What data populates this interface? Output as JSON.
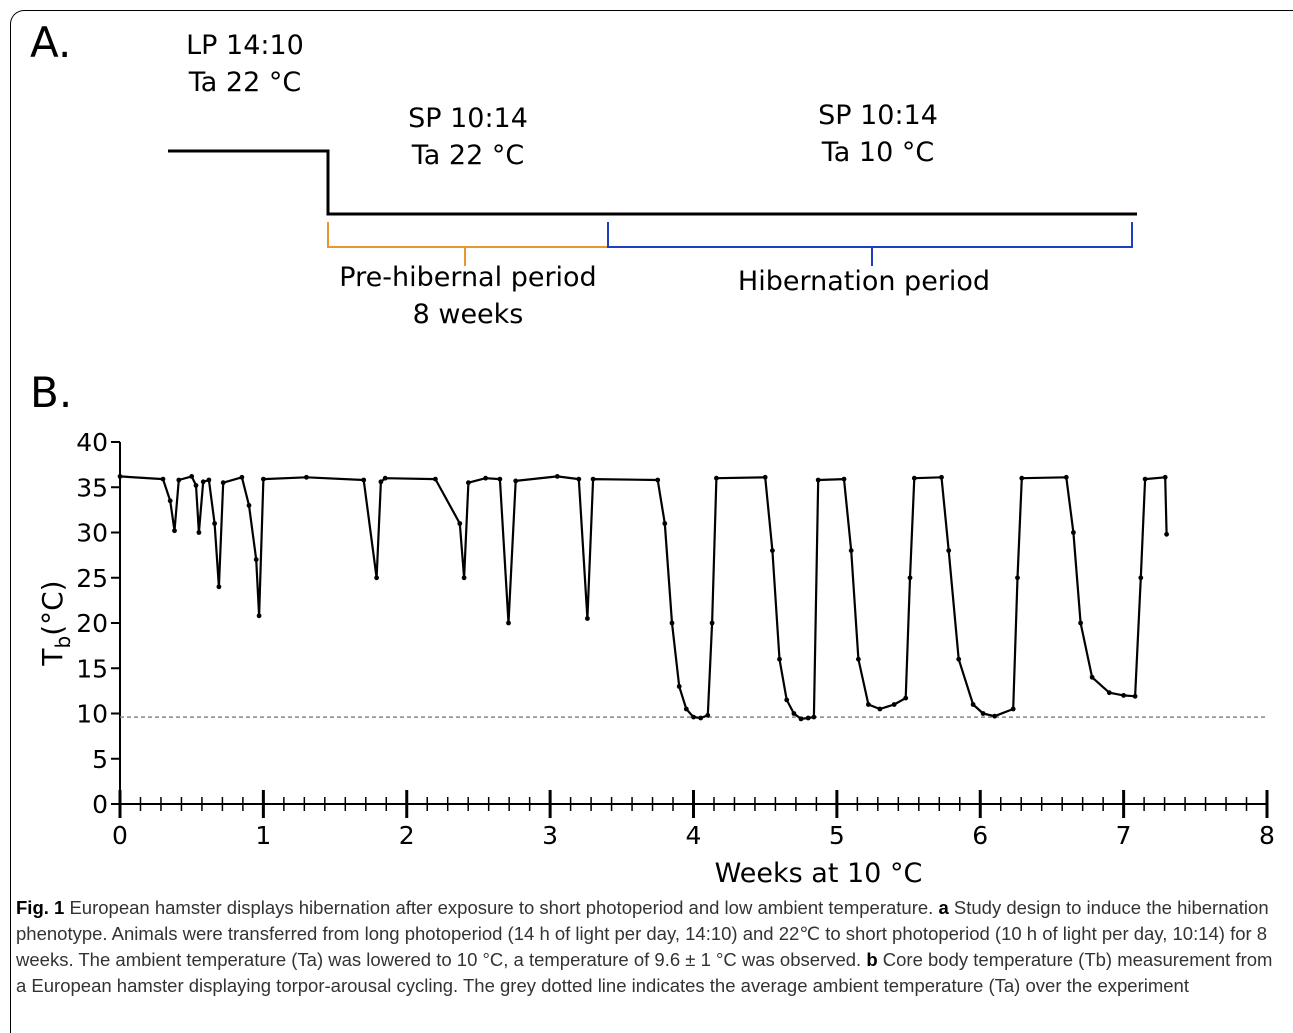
{
  "panel_a": {
    "label": "A.",
    "phase1": {
      "line1": "LP 14:10",
      "line2": "Ta 22 °C"
    },
    "phase2": {
      "line1": "SP 10:14",
      "line2": "Ta 22 °C"
    },
    "phase3": {
      "line1": "SP 10:14",
      "line2": "Ta 10 °C"
    },
    "bracket1": {
      "line1": "Pre-hibernal period",
      "line2": "8 weeks",
      "color": "#e8962e"
    },
    "bracket2": {
      "line1": "Hibernation period",
      "color": "#1f3fbf"
    }
  },
  "panel_b": {
    "label": "B."
  },
  "chart_data": {
    "type": "line",
    "xlabel": "Weeks at 10 °C",
    "ylabel_main": "T",
    "ylabel_sub": "b",
    "ylabel_tail": "(°C)",
    "xlim": [
      0,
      8
    ],
    "ylim": [
      0,
      40
    ],
    "xticks": [
      0,
      1,
      2,
      3,
      4,
      5,
      6,
      7,
      8
    ],
    "yticks": [
      0,
      5,
      10,
      15,
      20,
      25,
      30,
      35,
      40
    ],
    "x_minor_step": 0.142857,
    "reference_line": {
      "y": 9.6,
      "style": "dotted",
      "color": "#888888"
    },
    "series_color": "#000000",
    "x": [
      0.0,
      0.3,
      0.35,
      0.38,
      0.41,
      0.5,
      0.53,
      0.55,
      0.58,
      0.62,
      0.66,
      0.69,
      0.72,
      0.85,
      0.9,
      0.95,
      0.97,
      1.0,
      1.3,
      1.7,
      1.79,
      1.82,
      1.85,
      2.2,
      2.37,
      2.4,
      2.43,
      2.55,
      2.65,
      2.71,
      2.76,
      3.05,
      3.2,
      3.26,
      3.3,
      3.75,
      3.8,
      3.85,
      3.9,
      3.95,
      4.0,
      4.05,
      4.1,
      4.13,
      4.16,
      4.5,
      4.55,
      4.6,
      4.65,
      4.7,
      4.75,
      4.8,
      4.84,
      4.87,
      5.05,
      5.1,
      5.15,
      5.22,
      5.3,
      5.4,
      5.48,
      5.51,
      5.54,
      5.73,
      5.78,
      5.85,
      5.95,
      6.02,
      6.1,
      6.23,
      6.26,
      6.29,
      6.6,
      6.65,
      6.7,
      6.78,
      6.9,
      7.0,
      7.08,
      7.12,
      7.15,
      7.29,
      7.3
    ],
    "values": [
      36.2,
      35.9,
      33.5,
      30.2,
      35.8,
      36.2,
      35.2,
      30.0,
      35.6,
      35.8,
      31.0,
      24.0,
      35.5,
      36.1,
      33.0,
      27.0,
      20.8,
      35.9,
      36.1,
      35.8,
      25.0,
      35.6,
      36.0,
      35.9,
      31.0,
      25.0,
      35.5,
      36.0,
      35.9,
      20.0,
      35.7,
      36.2,
      35.9,
      20.5,
      35.9,
      35.8,
      31.0,
      20.0,
      13.0,
      10.5,
      9.6,
      9.5,
      9.8,
      20.0,
      36.0,
      36.1,
      28.0,
      16.0,
      11.5,
      10.0,
      9.4,
      9.5,
      9.6,
      35.8,
      35.9,
      28.0,
      16.0,
      11.0,
      10.5,
      11.0,
      11.7,
      25.0,
      36.0,
      36.1,
      28.0,
      16.0,
      11.0,
      10.0,
      9.7,
      10.5,
      25.0,
      36.0,
      36.1,
      30.0,
      20.0,
      14.0,
      12.3,
      12.0,
      11.9,
      25.0,
      35.9,
      36.1,
      29.8
    ]
  },
  "caption": {
    "fig": "Fig. 1",
    "title": "European hamster displays hibernation after exposure to short photoperiod and low ambient temperature.",
    "a_label": "a",
    "a_text": "Study design to induce the hibernation phenotype. Animals were transferred from long photoperiod (14 h of light per day, 14:10) and 22℃ to short photoperiod (10 h of light per day, 10:14) for 8 weeks. The ambient temperature (Ta) was lowered to 10 °C, a temperature of 9.6 ± 1 °C was observed.",
    "b_label": "b",
    "b_text": "Core body temperature (Tb) measurement from a European hamster displaying torpor-arousal cycling. The grey dotted line indicates the average ambient temperature (Ta) over the experiment"
  }
}
